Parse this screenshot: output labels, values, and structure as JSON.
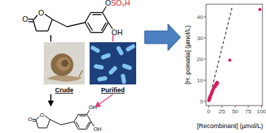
{
  "chart_data": {
    "type": "scatter",
    "x_label": "[Recombinant] (µmol/L)",
    "y_label": "[H. pomatia] (µmol/L)",
    "x": [
      0.3,
      0.5,
      0.8,
      1.0,
      1.2,
      1.5,
      1.8,
      2.0,
      2.4,
      2.8,
      3.0,
      3.5,
      4.0,
      4.5,
      5.0,
      5.5,
      6.0,
      6.5,
      7.0,
      7.5,
      8.0,
      9.0,
      10.0,
      11.0,
      12.0,
      13.0,
      14.0,
      15.0,
      16.0,
      17.0,
      40.0,
      97.0
    ],
    "values": [
      0.4,
      0.5,
      0.7,
      0.9,
      1.0,
      1.2,
      1.5,
      1.6,
      2.0,
      2.2,
      2.4,
      2.6,
      3.0,
      3.2,
      3.5,
      3.8,
      4.2,
      4.5,
      4.8,
      5.0,
      5.5,
      5.8,
      6.5,
      6.8,
      7.5,
      7.0,
      8.5,
      8.0,
      9.0,
      8.5,
      19.5,
      43.5
    ],
    "color": "#d81b60",
    "marker": "circle",
    "xlim": [
      -5,
      102
    ],
    "ylim": [
      -2,
      46
    ],
    "xticks": [
      0,
      25,
      50,
      75,
      100
    ],
    "yticks": [
      0,
      10,
      20,
      30,
      40
    ],
    "grid": false,
    "reference_line": {
      "x": [
        0,
        45
      ],
      "values": [
        0,
        45
      ],
      "line_style": "dashed",
      "color": "#000000"
    }
  },
  "diagram": {
    "substrate": {
      "carbonyl_o": "O",
      "ring_o": "O",
      "ether_o": "O",
      "sulfate": "SO₃H",
      "hydroxyl": "OH"
    },
    "product": {
      "carbonyl_o": "O",
      "ring_o": "O",
      "hydroxyl_top": "OH",
      "hydroxyl": "OH"
    },
    "crude_label": "Crude",
    "purified_label": "Purified"
  }
}
